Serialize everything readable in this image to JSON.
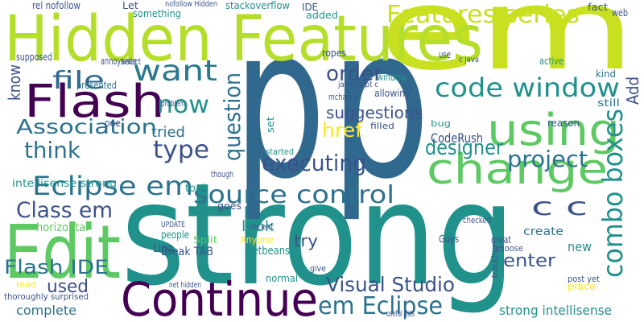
{
  "words": [
    "strong",
    "p",
    "p",
    "em",
    "Hidden Features",
    "Edit",
    "Continue",
    "Flash",
    "change",
    "using",
    "Features series",
    "want",
    "file",
    "question",
    "now",
    "order",
    "code window",
    "Association",
    "think",
    "type",
    "tried",
    "suggestions",
    "href",
    "designer",
    "project",
    "executing",
    "Eclipse em",
    "source control",
    "CodeRush",
    "Class em",
    "combo boxes",
    "c c",
    "Flash IDE",
    "Visual Studio",
    "em Eclipse",
    "used",
    "complete",
    "enter",
    "create",
    "look",
    "Netbeans",
    "try",
    "strong intellisense",
    "Add",
    "know",
    "intellisense strong",
    "Linq",
    "Break TAB",
    "horizontal",
    "Split",
    "people",
    "goes",
    "tool",
    "Guys",
    "new",
    "UPDATE",
    "Anyone",
    "stackoverflow",
    "Let",
    "IDE",
    "added",
    "something",
    "rel nofollow",
    "nofollow Hidden",
    "window",
    "ropes",
    "allowing",
    "bug",
    "reason",
    "still",
    "kind",
    "active",
    "c java",
    "use",
    "web",
    "fact",
    "annoyance",
    "supposed",
    "select",
    "presented",
    "one",
    "problem",
    "though",
    "started",
    "filled",
    "checked",
    "great",
    "choose",
    "tracking",
    "give",
    "normal",
    "useful lists",
    "read",
    "thoroughly surprised",
    "place",
    "post yet",
    "set",
    "recent",
    "mchance",
    "javascript c",
    "net hidden"
  ]
}
